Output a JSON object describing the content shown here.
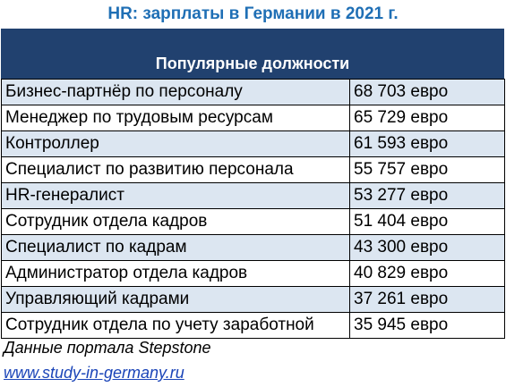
{
  "title": "HR: зарплаты в Германии в 2021 г.",
  "header": "Популярные должности",
  "rows": [
    {
      "position": "Бизнес-партнёр по персоналу",
      "salary": "68 703 евро"
    },
    {
      "position": "Менеджер по трудовым ресурсам",
      "salary": "65 729 евро"
    },
    {
      "position": "Контроллер",
      "salary": "61 593 евро"
    },
    {
      "position": "Специалист по развитию персонала",
      "salary": "55 757 евро"
    },
    {
      "position": "HR-генералист",
      "salary": "53 277 евро"
    },
    {
      "position": "Сотрудник отдела кадров",
      "salary": "51 404 евро"
    },
    {
      "position": "Специалист по кадрам",
      "salary": "43 300 евро"
    },
    {
      "position": "Администратор отдела кадров",
      "salary": "40 829 евро"
    },
    {
      "position": "Управляющий кадрами",
      "salary": "37 261 евро"
    },
    {
      "position": "Сотрудник отдела по учету заработной",
      "salary": "35 945 евро"
    }
  ],
  "source": "Данные портала Stepstone",
  "link": "www.study-in-germany.ru",
  "colors": {
    "title": "#1f6fb5",
    "header_band": "#21416f",
    "row_stripe": "#dce6f1",
    "link": "#1a44b8"
  }
}
